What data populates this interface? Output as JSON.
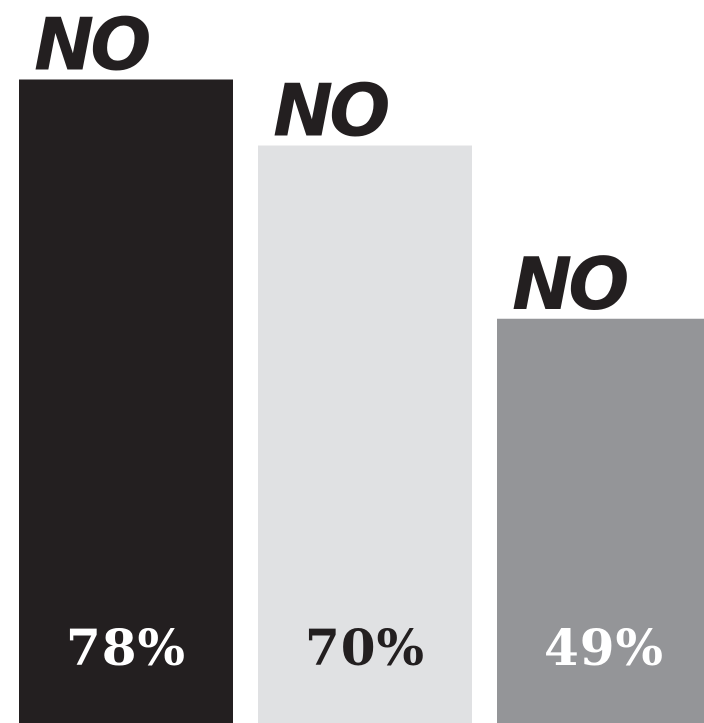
{
  "chart_data": {
    "type": "bar",
    "categories": [
      "NO",
      "NO",
      "NO"
    ],
    "values": [
      78,
      70,
      49
    ],
    "value_labels": [
      "78%",
      "70%",
      "49%"
    ],
    "colors": [
      "#231f20",
      "#e0e1e3",
      "#949598"
    ],
    "value_label_colors": [
      "#ffffff",
      "#231f20",
      "#ffffff"
    ],
    "ylim": [
      0,
      100
    ],
    "unit": "%",
    "grid": false,
    "axes_visible": false
  }
}
